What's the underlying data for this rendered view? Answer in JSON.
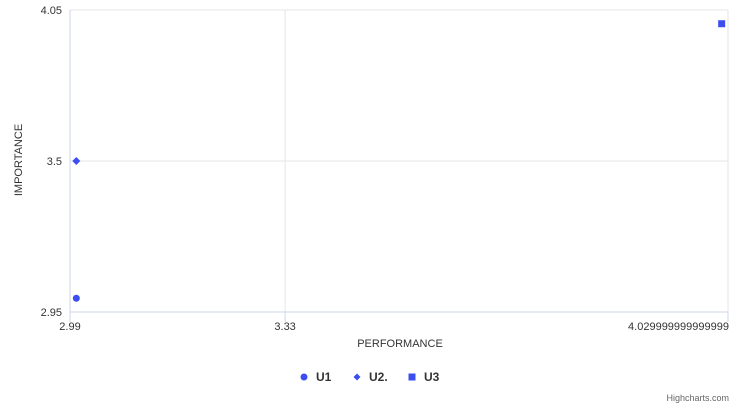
{
  "chart_data": {
    "type": "scatter",
    "title": "",
    "xlabel": "PERFORMANCE",
    "ylabel": "IMPORTANCE",
    "xlim": [
      2.99,
      4.03
    ],
    "ylim": [
      2.95,
      4.05
    ],
    "x_ticks": [
      "2.99",
      "3.33",
      "4.029999999999999"
    ],
    "x_tick_values": [
      2.99,
      3.33,
      4.03
    ],
    "y_ticks": [
      "2.95",
      "3.5",
      "4.05"
    ],
    "y_tick_values": [
      2.95,
      3.5,
      4.05
    ],
    "grid": true,
    "legend": "bottom-center",
    "series": [
      {
        "name": "U1",
        "marker": "circle",
        "color": "#3d4ef0",
        "points": [
          [
            3.0,
            3.0
          ]
        ]
      },
      {
        "name": "U2.",
        "marker": "diamond",
        "color": "#3d4ef0",
        "points": [
          [
            3.0,
            3.5
          ]
        ]
      },
      {
        "name": "U3",
        "marker": "square",
        "color": "#3d4ef0",
        "points": [
          [
            4.02,
            4.0
          ]
        ]
      }
    ],
    "credits": "Highcharts.com"
  }
}
